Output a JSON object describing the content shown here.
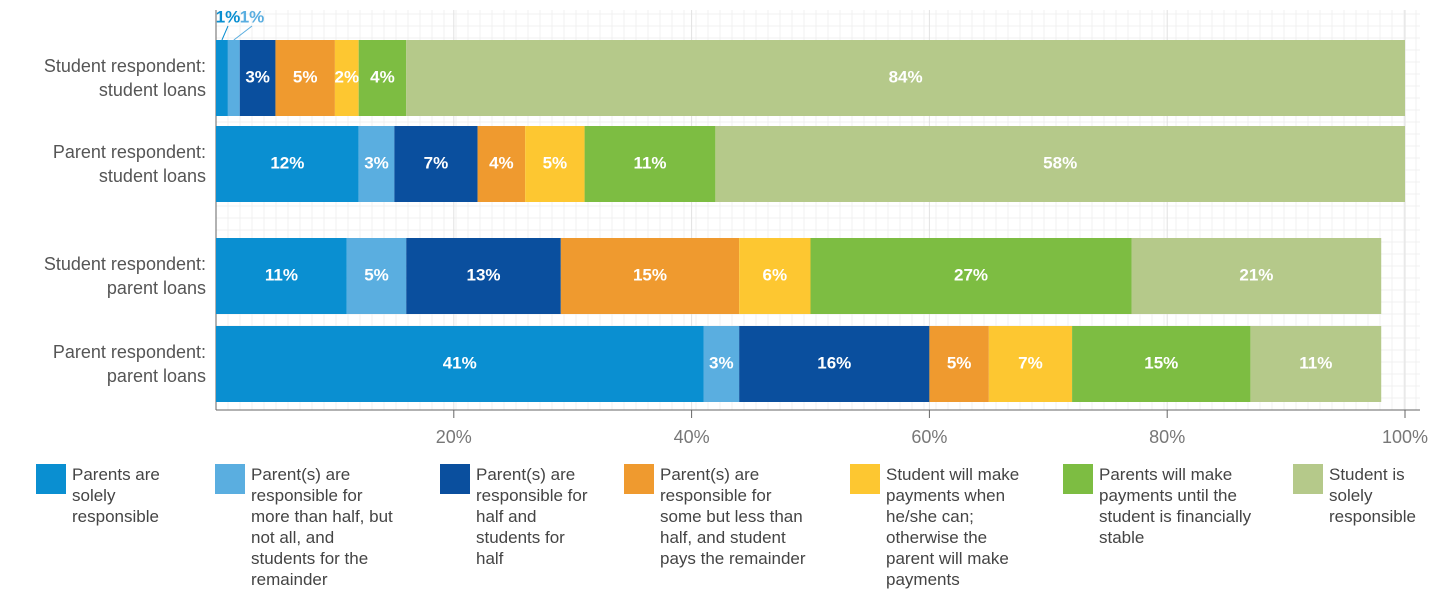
{
  "chart_data": {
    "type": "stacked-bar-horizontal",
    "categories": [
      "Student respondent: student loans",
      "Parent respondent: student loans",
      "Student respondent: parent loans",
      "Parent respondent: parent loans"
    ],
    "series": [
      {
        "name": "Parents are solely responsible",
        "color": "#0a8fd1",
        "values": [
          1,
          12,
          11,
          41
        ],
        "value_labels": [
          "1%",
          "12%",
          "11%",
          "41%"
        ]
      },
      {
        "name": "Parent(s) are responsible for more than half, but not all, and students for the remainder",
        "color": "#5aaee0",
        "values": [
          1,
          3,
          5,
          3
        ],
        "value_labels": [
          "1%",
          "3%",
          "5%",
          "3%"
        ]
      },
      {
        "name": "Parent(s) are responsible for half and students for half",
        "color": "#0a4f9e",
        "values": [
          3,
          7,
          13,
          16
        ],
        "value_labels": [
          "3%",
          "7%",
          "13%",
          "16%"
        ]
      },
      {
        "name": "Parent(s) are responsible for some but less than half, and student pays the remainder",
        "color": "#ef9a2f",
        "values": [
          5,
          4,
          15,
          5
        ],
        "value_labels": [
          "5%",
          "4%",
          "15%",
          "5%"
        ]
      },
      {
        "name": "Student will make payments when he/she can; otherwise the parent will make payments",
        "color": "#fdc731",
        "values": [
          2,
          5,
          6,
          7
        ],
        "value_labels": [
          "2%",
          "5%",
          "6%",
          "7%"
        ]
      },
      {
        "name": "Parents will make payments until the student is financially stable",
        "color": "#7dbd42",
        "values": [
          4,
          11,
          27,
          15
        ],
        "value_labels": [
          "4%",
          "11%",
          "27%",
          "15%"
        ]
      },
      {
        "name": "Student is solely responsible",
        "color": "#b5c98a",
        "values": [
          84,
          58,
          21,
          11
        ],
        "value_labels": [
          "84%",
          "58%",
          "21%",
          "11%"
        ]
      }
    ],
    "xlim": [
      0,
      100
    ],
    "xticks": [
      {
        "value": 20,
        "label": "20%"
      },
      {
        "value": 40,
        "label": "40%"
      },
      {
        "value": 60,
        "label": "60%"
      },
      {
        "value": 80,
        "label": "80%"
      },
      {
        "value": 100,
        "label": "100%"
      }
    ],
    "grid": true
  }
}
